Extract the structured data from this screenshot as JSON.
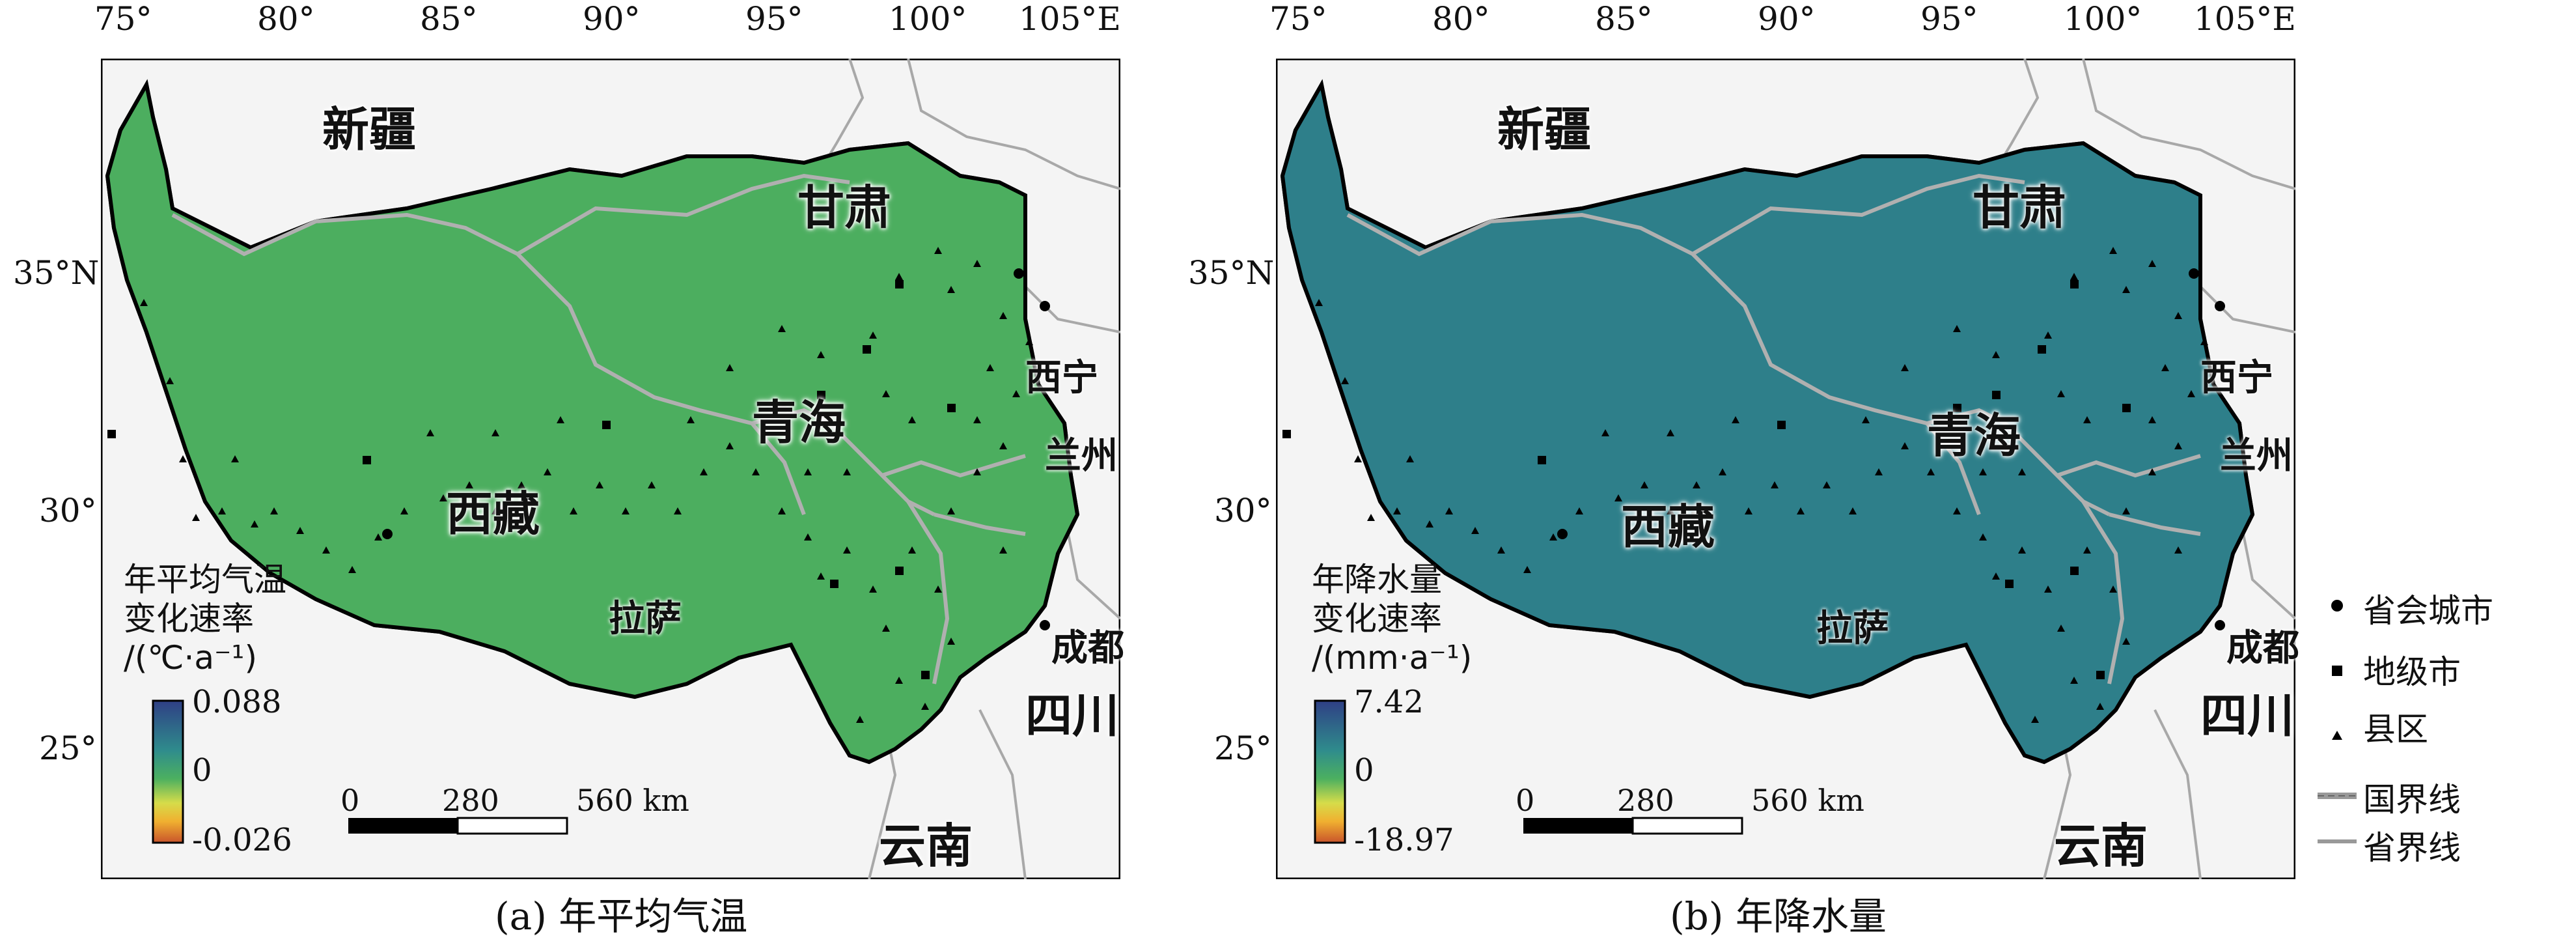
{
  "map_common": {
    "lon_ticks": [
      "75°",
      "80°",
      "85°",
      "90°",
      "95°",
      "100°",
      "105°E"
    ],
    "lat_ticks": [
      "35°N",
      "30°",
      "25°"
    ],
    "regions": {
      "xinjiang": "新疆",
      "gansu": "甘肃",
      "qinghai": "青海",
      "xizang": "西藏",
      "sichuan": "四川",
      "yunnan": "云南"
    },
    "cities": {
      "xining": "西宁",
      "lanzhou": "兰州",
      "lhasa": "拉萨",
      "chengdu": "成都"
    },
    "scalebar": {
      "v0": "0",
      "v1": "280",
      "v2": "560 km"
    }
  },
  "panel_a": {
    "caption": "(a) 年平均气温",
    "legend_title_1": "年平均气温",
    "legend_title_2": "变化速率",
    "legend_title_3": "/(℃·a⁻¹)",
    "legend_max": "0.088",
    "legend_mid": "0",
    "legend_min": "-0.026"
  },
  "panel_b": {
    "caption": "(b) 年降水量",
    "legend_title_1": "年降水量",
    "legend_title_2": "变化速率",
    "legend_title_3": "/(mm·a⁻¹)",
    "legend_max": "7.42",
    "legend_mid": "0",
    "legend_min": "-18.97"
  },
  "legend": {
    "capital": "省会城市",
    "prefecture": "地级市",
    "county": "县区",
    "national_border": "国界线",
    "provincial_border": "省界线"
  },
  "colors": {
    "high": "#2f3f85",
    "mid": "#3ea860",
    "zero": "#e8d84a",
    "low": "#c9542b"
  }
}
